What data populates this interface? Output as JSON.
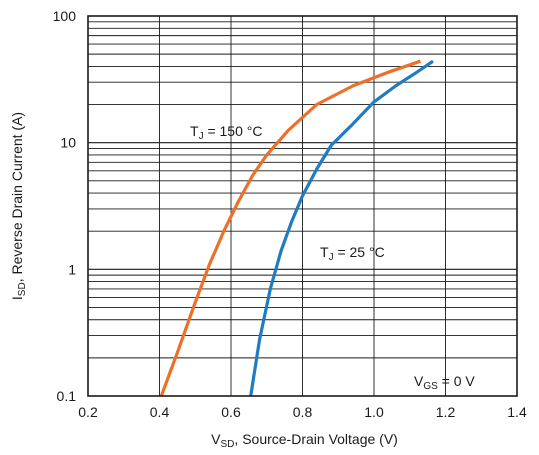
{
  "chart_data": {
    "type": "line",
    "title": "",
    "xlabel": {
      "main": "V",
      "sub": "SD",
      "rest": ", Source-Drain Voltage (V)"
    },
    "ylabel": {
      "main": "I",
      "sub": "SD",
      "rest": ", Reverse Drain Current (A)"
    },
    "xlim": [
      0.2,
      1.4
    ],
    "ylim": [
      0.1,
      100
    ],
    "yscale": "log",
    "grid": true,
    "x_ticks": [
      "0.2",
      "0.4",
      "0.6",
      "0.8",
      "1.0",
      "1.2",
      "1.4"
    ],
    "y_ticks": [
      "0.1",
      "1",
      "10",
      "100"
    ],
    "series": [
      {
        "name": "TJ = 150 °C",
        "color": "#ee7028",
        "x": [
          0.405,
          0.45,
          0.5,
          0.54,
          0.58,
          0.62,
          0.66,
          0.7,
          0.76,
          0.84,
          0.94,
          1.04,
          1.13
        ],
        "y": [
          0.1,
          0.22,
          0.55,
          1.1,
          2.0,
          3.4,
          5.5,
          8.0,
          12.5,
          20,
          28,
          36,
          44
        ]
      },
      {
        "name": "TJ = 25 °C",
        "color": "#1f7bc2",
        "x": [
          0.655,
          0.68,
          0.71,
          0.74,
          0.77,
          0.8,
          0.84,
          0.88,
          0.94,
          1.0,
          1.06,
          1.12,
          1.165
        ],
        "y": [
          0.1,
          0.28,
          0.7,
          1.4,
          2.4,
          3.8,
          6.2,
          9.5,
          14,
          21,
          28,
          36,
          44
        ]
      }
    ],
    "annotations": {
      "t150": {
        "main": "T",
        "sub": "J",
        "rest": " = 150 °C"
      },
      "t25": {
        "main": "T",
        "sub": "J",
        "rest": " = 25 °C"
      },
      "vgs": {
        "main": "V",
        "sub": "GS",
        "rest": " = 0 V"
      }
    }
  }
}
